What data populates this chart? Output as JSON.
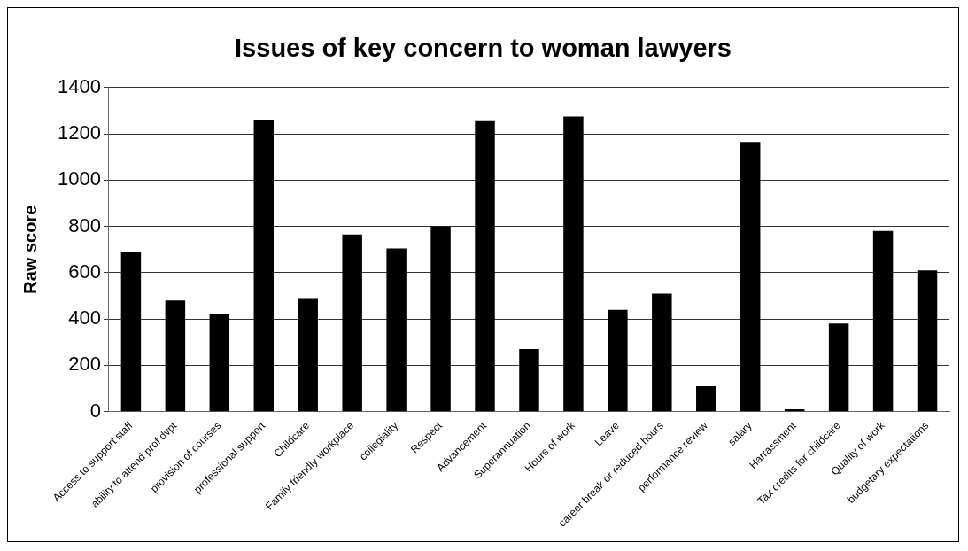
{
  "chart_data": {
    "type": "bar",
    "title": "Issues of key concern to woman lawyers",
    "ylabel": "Raw score",
    "categories": [
      "Access to support staff",
      "ability to attend prof dvpt",
      "provision of courses",
      "professional support",
      "Childcare",
      "Family friendly workplace",
      "collegiality",
      "Respect",
      "Advancement",
      "Superannuation",
      "Hours of work",
      "Leave",
      "career break or reduced hours",
      "performance review",
      "salary",
      "Harrassment",
      "Tax credits for childcare",
      "Quality of work",
      "budgetary expectations"
    ],
    "values": [
      690,
      480,
      420,
      1260,
      490,
      765,
      705,
      800,
      1255,
      270,
      1275,
      440,
      510,
      110,
      1165,
      10,
      380,
      780,
      610
    ],
    "color": "#000000",
    "ylim": [
      0,
      1400
    ],
    "yticks": [
      0,
      200,
      400,
      600,
      800,
      1000,
      1200,
      1400
    ],
    "grid": "y",
    "legend": false
  }
}
